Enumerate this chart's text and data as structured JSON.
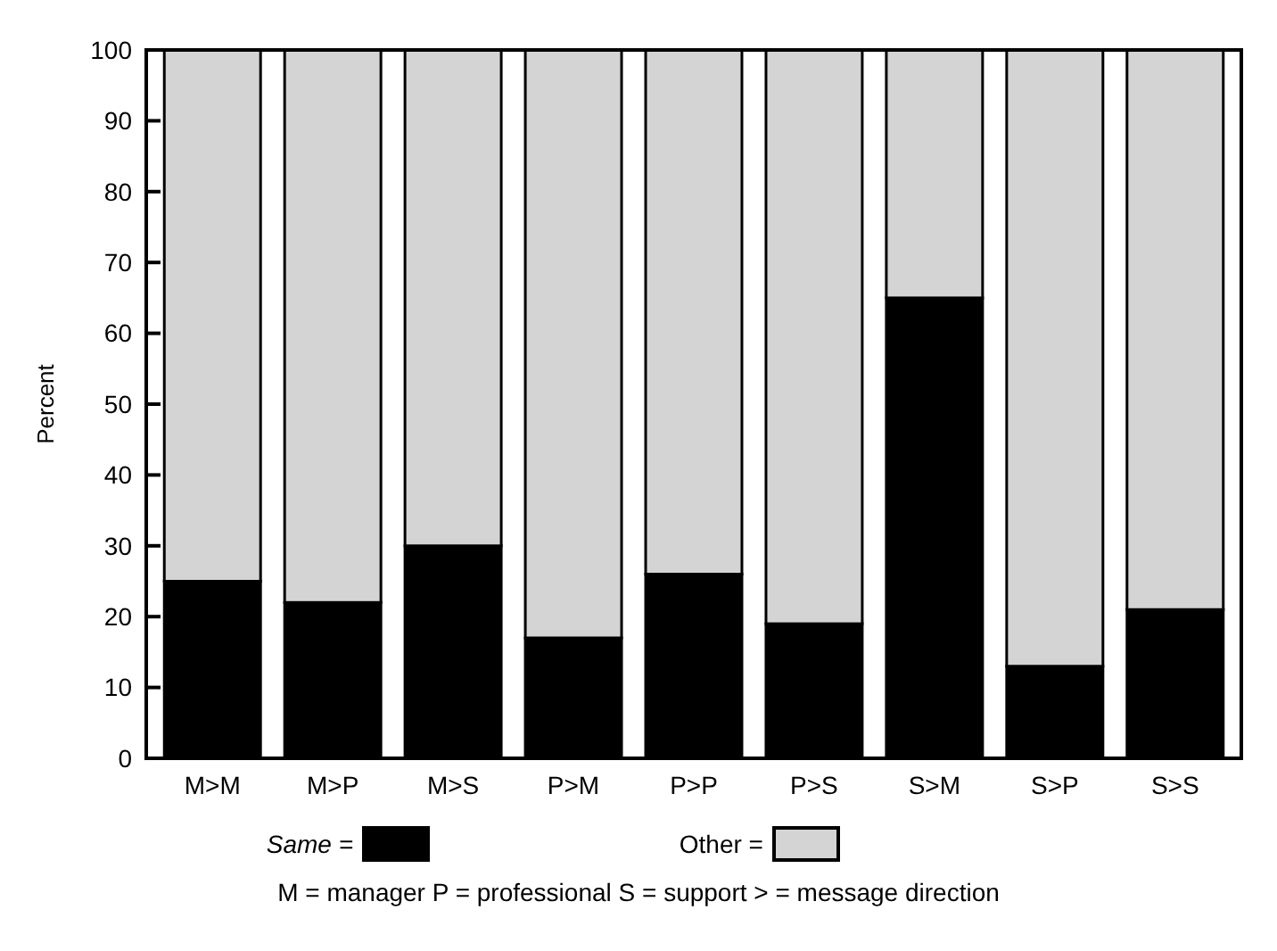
{
  "chart_data": {
    "type": "bar",
    "stacked": true,
    "ylabel": "Percent",
    "categories": [
      "M>M",
      "M>P",
      "M>S",
      "P>M",
      "P>P",
      "P>S",
      "S>M",
      "S>P",
      "S>S"
    ],
    "series": [
      {
        "name": "Same =",
        "color": "#000000",
        "values": [
          25,
          22,
          30,
          17,
          26,
          19,
          65,
          13,
          21
        ]
      },
      {
        "name": "Other =",
        "color": "#d4d4d4",
        "values": [
          75,
          78,
          70,
          83,
          74,
          81,
          35,
          87,
          79
        ]
      }
    ],
    "ylim": [
      0,
      100
    ],
    "yticks": [
      0,
      10,
      20,
      30,
      40,
      50,
      60,
      70,
      80,
      90,
      100
    ],
    "legend": "bottom",
    "annotations": [
      "M = manager  P = professional  S = support   > = message direction"
    ]
  }
}
